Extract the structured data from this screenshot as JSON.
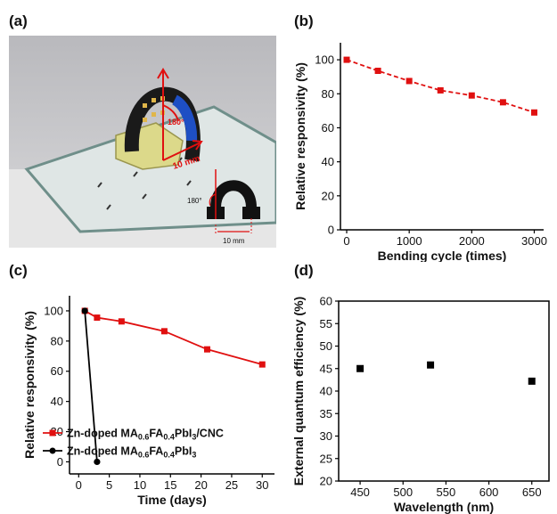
{
  "panels": {
    "a": "(a)",
    "b": "(b)",
    "c": "(c)",
    "d": "(d)"
  },
  "photo": {
    "angle_label": "180°",
    "distance_label": "10 mm",
    "inset_angle_label": "180°",
    "inset_distance_label": "10 mm"
  },
  "chart_data": [
    {
      "id": "b",
      "type": "line",
      "xlabel": "Bending cycle (times)",
      "ylabel": "Relative responsivity (%)",
      "xlim": [
        -100,
        3150
      ],
      "ylim": [
        0,
        110
      ],
      "xticks": [
        0,
        1000,
        2000,
        3000
      ],
      "yticks": [
        0,
        20,
        40,
        60,
        80,
        100
      ],
      "series": [
        {
          "color": "#e01010",
          "marker": "square",
          "line": "dashed",
          "x": [
            0,
            500,
            1000,
            1500,
            2000,
            2500,
            3000
          ],
          "y": [
            100,
            93.5,
            87.5,
            82,
            79,
            75,
            69
          ]
        }
      ]
    },
    {
      "id": "c",
      "type": "line",
      "xlabel": "Time (days)",
      "ylabel": "Relative responsivity (%)",
      "xlim": [
        -1.5,
        32
      ],
      "ylim": [
        -8,
        110
      ],
      "xticks": [
        0,
        5,
        10,
        15,
        20,
        25,
        30
      ],
      "yticks": [
        0,
        20,
        40,
        60,
        80,
        100
      ],
      "legend_position": "bottom-left",
      "series": [
        {
          "name": "Zn-doped MA0.6FA0.4PbI3/CNC",
          "name_parts": {
            "base": "Zn-doped MA",
            "s1": "0.6",
            "mid": "FA",
            "s2": "0.4",
            "tail": "PbI",
            "s3": "3",
            "suffix": "/CNC"
          },
          "color": "#e01010",
          "marker": "square",
          "line": "solid",
          "x": [
            1,
            3,
            7,
            14,
            21,
            30
          ],
          "y": [
            100,
            95.5,
            93,
            86.5,
            74.5,
            64.5
          ]
        },
        {
          "name": "Zn-doped MA0.6FA0.4PbI3",
          "name_parts": {
            "base": "Zn-doped MA",
            "s1": "0.6",
            "mid": "FA",
            "s2": "0.4",
            "tail": "PbI",
            "s3": "3",
            "suffix": ""
          },
          "color": "#000000",
          "marker": "circle",
          "line": "solid",
          "x": [
            1,
            3
          ],
          "y": [
            100,
            0
          ]
        }
      ]
    },
    {
      "id": "d",
      "type": "scatter",
      "xlabel": "Wavelength (nm)",
      "ylabel": "External quantum efficiency (%)",
      "xlim": [
        425,
        670
      ],
      "ylim": [
        20,
        60
      ],
      "xticks": [
        450,
        500,
        550,
        600,
        650
      ],
      "yticks": [
        20,
        25,
        30,
        35,
        40,
        45,
        50,
        55,
        60
      ],
      "series": [
        {
          "color": "#000000",
          "marker": "square",
          "x": [
            450,
            532,
            650
          ],
          "y": [
            45,
            45.8,
            42.2
          ]
        }
      ]
    }
  ]
}
